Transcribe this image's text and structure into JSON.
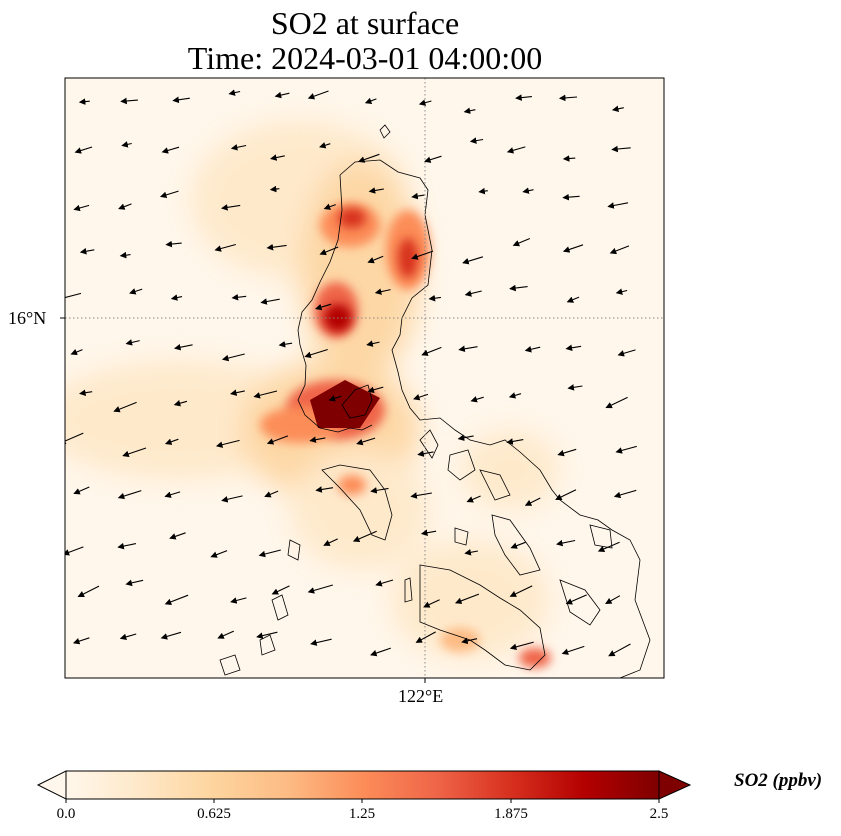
{
  "title": {
    "line1": "SO2 at surface",
    "line2": "Time: 2024-03-01 04:00:00"
  },
  "map": {
    "gridlines": {
      "latitude": "16°N",
      "longitude": "122°E",
      "style": "dotted"
    },
    "coastline_color": "#000000",
    "wind_vectors": "black arrows",
    "hotspot_color": "#7f0000"
  },
  "colorbar": {
    "label": "SO2 (ppbv)",
    "ticks": [
      "0.0",
      "0.625",
      "1.25",
      "1.875",
      "2.5"
    ],
    "range": [
      0.0,
      2.5
    ],
    "colormap": "OrRd",
    "colors": [
      "#fff7ec",
      "#fee8c8",
      "#fdd49e",
      "#fdbb84",
      "#fc8d59",
      "#ef6548",
      "#d7301f",
      "#b30000",
      "#7f0000"
    ],
    "extend": "both"
  }
}
